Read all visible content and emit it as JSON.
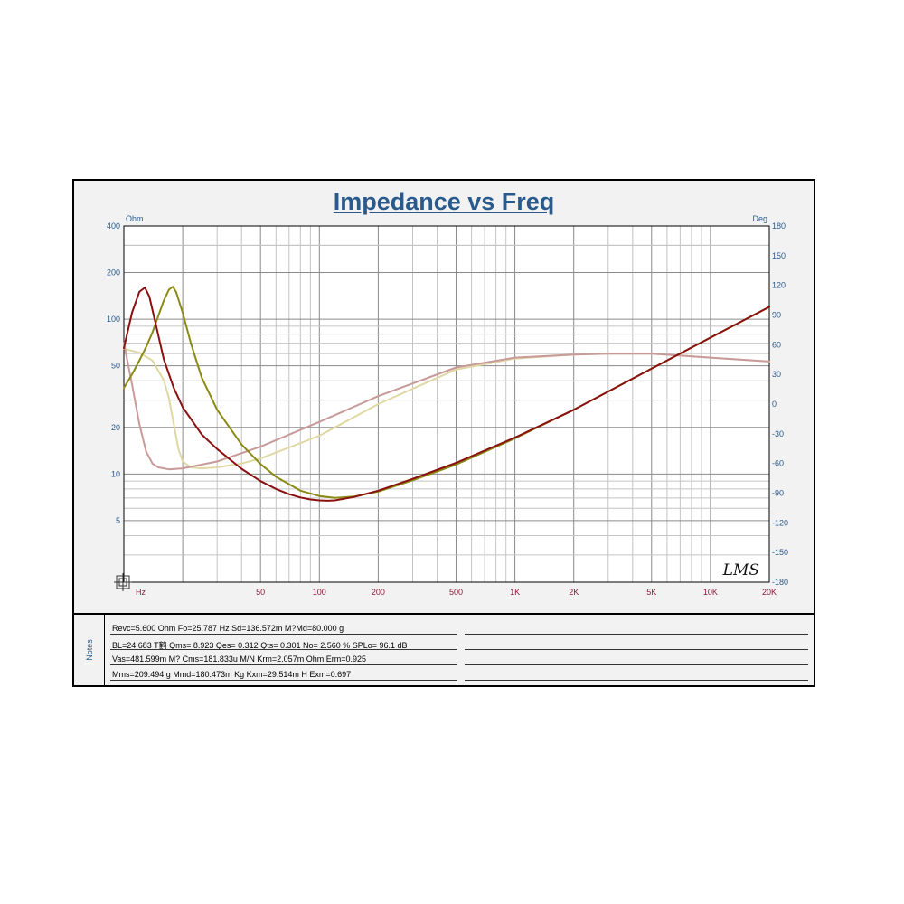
{
  "chart_data": {
    "type": "line",
    "title": "Impedance vs Freq",
    "x_unit": "Hz",
    "y_left_unit": "Ohm",
    "y_right_unit": "Deg",
    "x_scale": "log",
    "y_left_scale": "log",
    "xlim": [
      10,
      20000
    ],
    "ylim_left": [
      2,
      400
    ],
    "ylim_right": [
      -180,
      180
    ],
    "grid": true,
    "x_ticks": [
      {
        "value": 50,
        "label": "50"
      },
      {
        "value": 100,
        "label": "100"
      },
      {
        "value": 200,
        "label": "200"
      },
      {
        "value": 500,
        "label": "500"
      },
      {
        "value": 1000,
        "label": "1K"
      },
      {
        "value": 2000,
        "label": "2K"
      },
      {
        "value": 5000,
        "label": "5K"
      },
      {
        "value": 10000,
        "label": "10K"
      },
      {
        "value": 20000,
        "label": "20K"
      }
    ],
    "y_left_ticks": [
      {
        "value": 400,
        "label": "400"
      },
      {
        "value": 200,
        "label": "200"
      },
      {
        "value": 100,
        "label": "100"
      },
      {
        "value": 50,
        "label": "50"
      },
      {
        "value": 20,
        "label": "20"
      },
      {
        "value": 10,
        "label": "10"
      },
      {
        "value": 5,
        "label": "5"
      }
    ],
    "y_right_ticks": [
      {
        "value": 180,
        "label": "180"
      },
      {
        "value": 150,
        "label": "150"
      },
      {
        "value": 120,
        "label": "120"
      },
      {
        "value": 90,
        "label": "90"
      },
      {
        "value": 60,
        "label": "60"
      },
      {
        "value": 30,
        "label": "30"
      },
      {
        "value": 0,
        "label": "0"
      },
      {
        "value": -30,
        "label": "-30"
      },
      {
        "value": -60,
        "label": "-60"
      },
      {
        "value": -90,
        "label": "-90"
      },
      {
        "value": -120,
        "label": "-120"
      },
      {
        "value": -150,
        "label": "-150"
      },
      {
        "value": -180,
        "label": "-180"
      }
    ],
    "series": [
      {
        "axis": "left",
        "color": "#8b1010",
        "x": [
          10,
          11,
          12,
          12.8,
          13.5,
          14.5,
          16,
          18,
          20,
          25,
          30,
          40,
          50,
          60,
          70,
          80,
          90,
          100,
          110,
          120,
          150,
          200,
          300,
          500,
          1000,
          2000,
          5000,
          10000,
          20000
        ],
        "y": [
          65,
          110,
          150,
          160,
          140,
          95,
          55,
          36,
          27,
          18,
          14.5,
          10.8,
          9,
          8,
          7.4,
          7.05,
          6.85,
          6.75,
          6.72,
          6.75,
          7.1,
          7.8,
          9.3,
          11.8,
          17.2,
          26,
          48,
          76,
          120
        ]
      },
      {
        "axis": "left",
        "color": "#8a8a14",
        "x": [
          10,
          11,
          12,
          13,
          14,
          15,
          16,
          17,
          17.8,
          18.5,
          20,
          22,
          25,
          30,
          40,
          50,
          60,
          80,
          100,
          120,
          150,
          200,
          300,
          500,
          1000,
          2000,
          5000,
          10000,
          20000
        ],
        "y": [
          36,
          44,
          54,
          66,
          82,
          105,
          132,
          155,
          162,
          150,
          110,
          70,
          42,
          26,
          15.5,
          11.6,
          9.6,
          7.8,
          7.2,
          7.0,
          7.15,
          7.7,
          9.1,
          11.5,
          17,
          26,
          48,
          76,
          120
        ]
      },
      {
        "axis": "right",
        "color": "#c89a9a",
        "x": [
          10,
          11,
          12,
          13,
          14,
          15,
          17,
          20,
          30,
          50,
          100,
          200,
          500,
          1000,
          2000,
          3000,
          5000,
          10000,
          20000
        ],
        "y": [
          62,
          20,
          -20,
          -48,
          -60,
          -64,
          -66,
          -65,
          -58,
          -43,
          -18,
          8,
          37,
          47,
          50,
          51,
          51,
          47,
          43
        ]
      },
      {
        "axis": "right",
        "color": "#e0d8a4",
        "x": [
          10,
          12,
          14,
          16,
          17,
          18,
          19,
          20,
          22,
          25,
          30,
          40,
          50,
          100,
          200,
          500,
          1000,
          2000,
          3000,
          5000,
          10000,
          20000
        ],
        "y": [
          56,
          52,
          44,
          24,
          6,
          -20,
          -45,
          -58,
          -64,
          -65,
          -64,
          -60,
          -55,
          -32,
          0,
          35,
          46,
          50,
          51,
          51,
          47,
          43
        ]
      }
    ]
  },
  "logo_text": "LMS",
  "notes": {
    "label": "Notes",
    "lines": [
      "Revc=5.600  Ohm   Fo=25.787  Hz   Sd=136.572m  M?Md=80.000  g",
      "BL=24.683  T鹤    Qms= 8.923   Qes= 0.312   Qts= 0.301   No= 2.560  %   SPLo= 96.1  dB",
      "Vas=481.599m  M? Cms=181.833u  M/N   Krm=2.057m  Ohm    Erm=0.925",
      "Mms=209.494  g   Mmd=180.473m  Kg   Kxm=29.514m  H    Exm=0.697"
    ]
  }
}
